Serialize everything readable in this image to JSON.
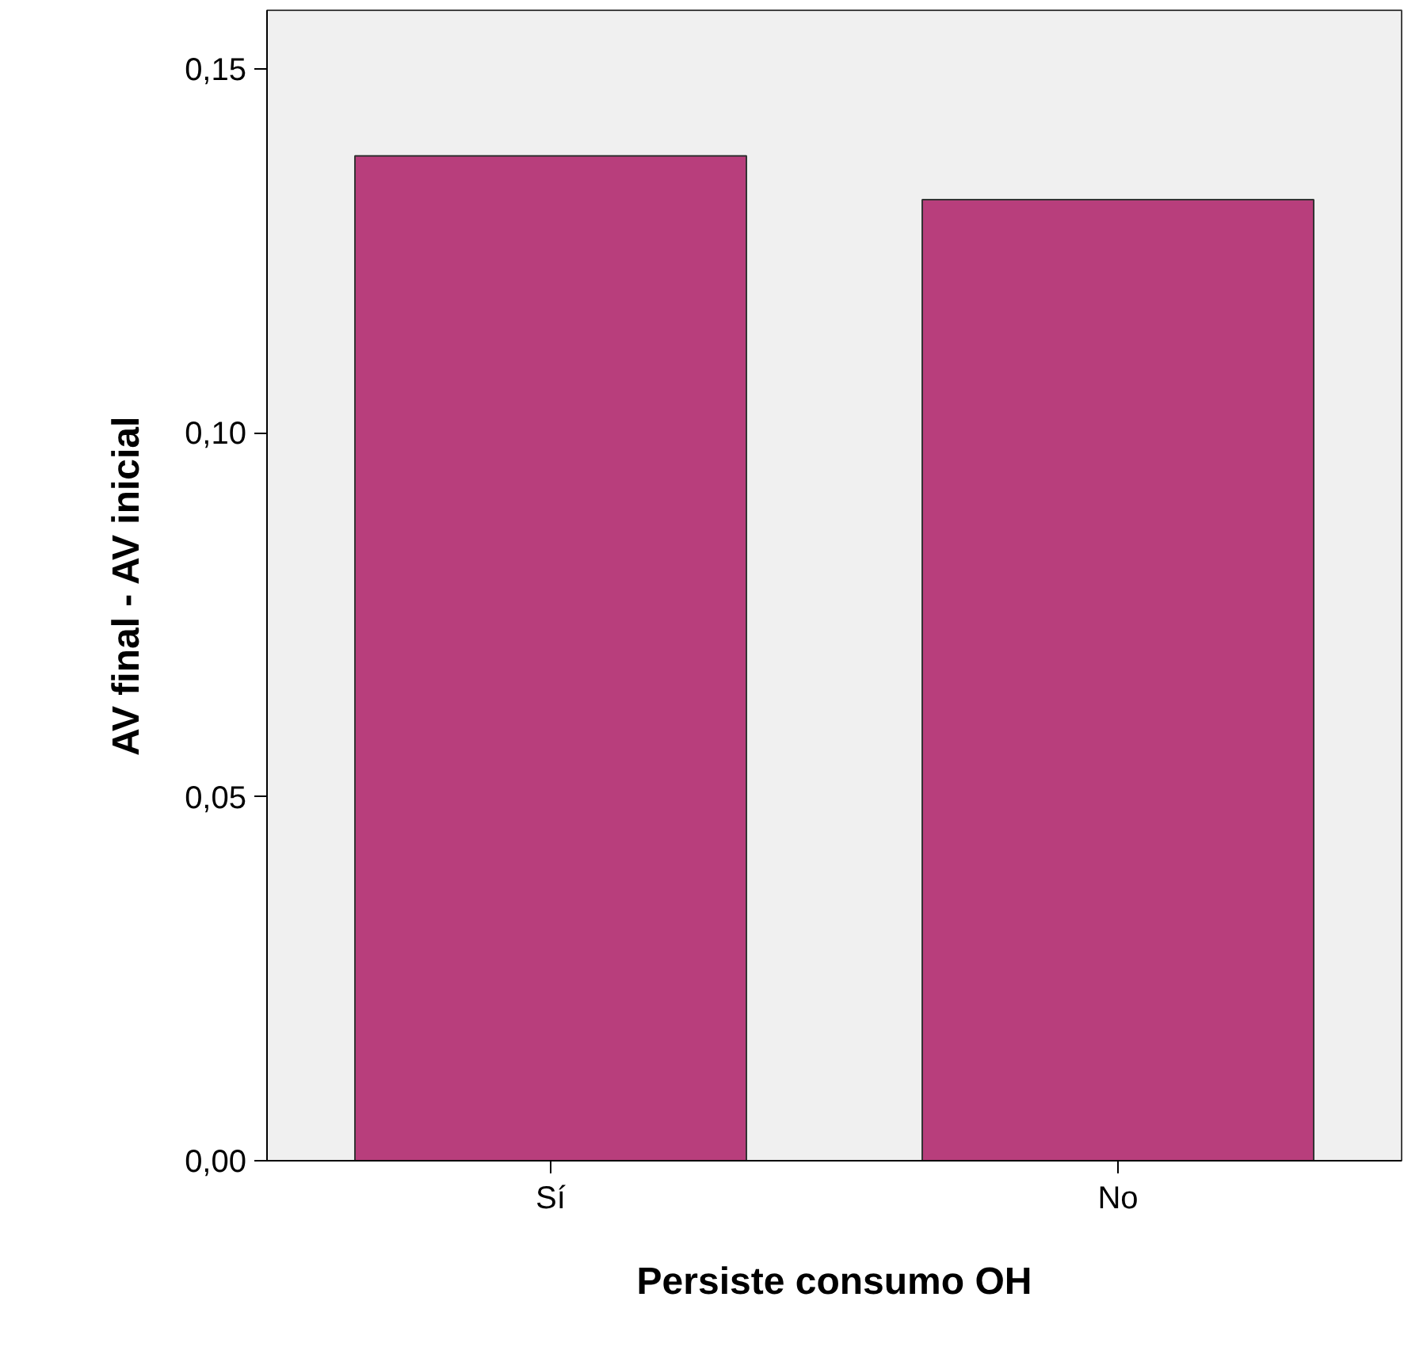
{
  "chart_data": {
    "type": "bar",
    "xlabel": "Persiste consumo OH",
    "ylabel": "AV final - AV inicial",
    "categories": [
      "Sí",
      "No"
    ],
    "values": [
      0.138,
      0.132
    ],
    "color": "#b83e7c",
    "ylim": [
      0,
      0.158
    ],
    "yticks": [
      {
        "value": 0,
        "label": "0,00"
      },
      {
        "value": 0.05,
        "label": "0,05"
      },
      {
        "value": 0.1,
        "label": "0,10"
      },
      {
        "value": 0.15,
        "label": "0,15"
      }
    ],
    "grid": false
  }
}
